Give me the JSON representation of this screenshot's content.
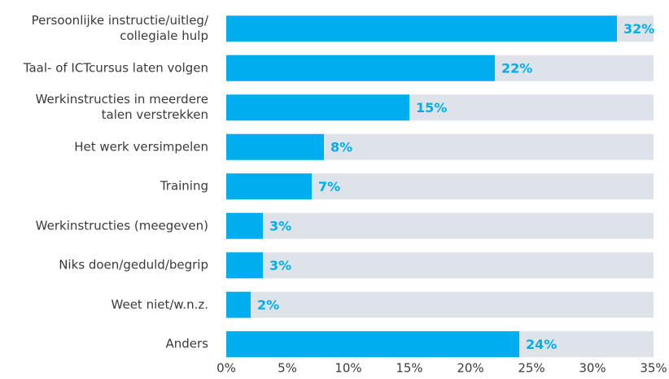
{
  "chart_data": {
    "type": "bar",
    "orientation": "horizontal",
    "categories": [
      "Persoonlijke instructie/uitleg/\ncollegiale hulp",
      "Taal- of ICTcursus laten volgen",
      "Werkinstructies in meerdere\ntalen verstrekken",
      "Het werk versimpelen",
      "Training",
      "Werkinstructies (meegeven)",
      "Niks doen/geduld/begrip",
      "Weet niet/w.n.z.",
      "Anders"
    ],
    "values": [
      32,
      22,
      15,
      8,
      7,
      3,
      3,
      2,
      24
    ],
    "value_labels": [
      "32%",
      "22%",
      "15%",
      "8%",
      "7%",
      "3%",
      "3%",
      "2%",
      "24%"
    ],
    "color": "#00aeef",
    "track_color": "#dde3e8",
    "xlim": [
      0,
      35
    ],
    "xticks": [
      {
        "value": 0,
        "label": "0%"
      },
      {
        "value": 5,
        "label": "5%"
      },
      {
        "value": 10,
        "label": "10%"
      },
      {
        "value": 15,
        "label": "15%"
      },
      {
        "value": 20,
        "label": "20%"
      },
      {
        "value": 25,
        "label": "25%"
      },
      {
        "value": 30,
        "label": "30%"
      },
      {
        "value": 35,
        "label": "35%"
      }
    ]
  }
}
